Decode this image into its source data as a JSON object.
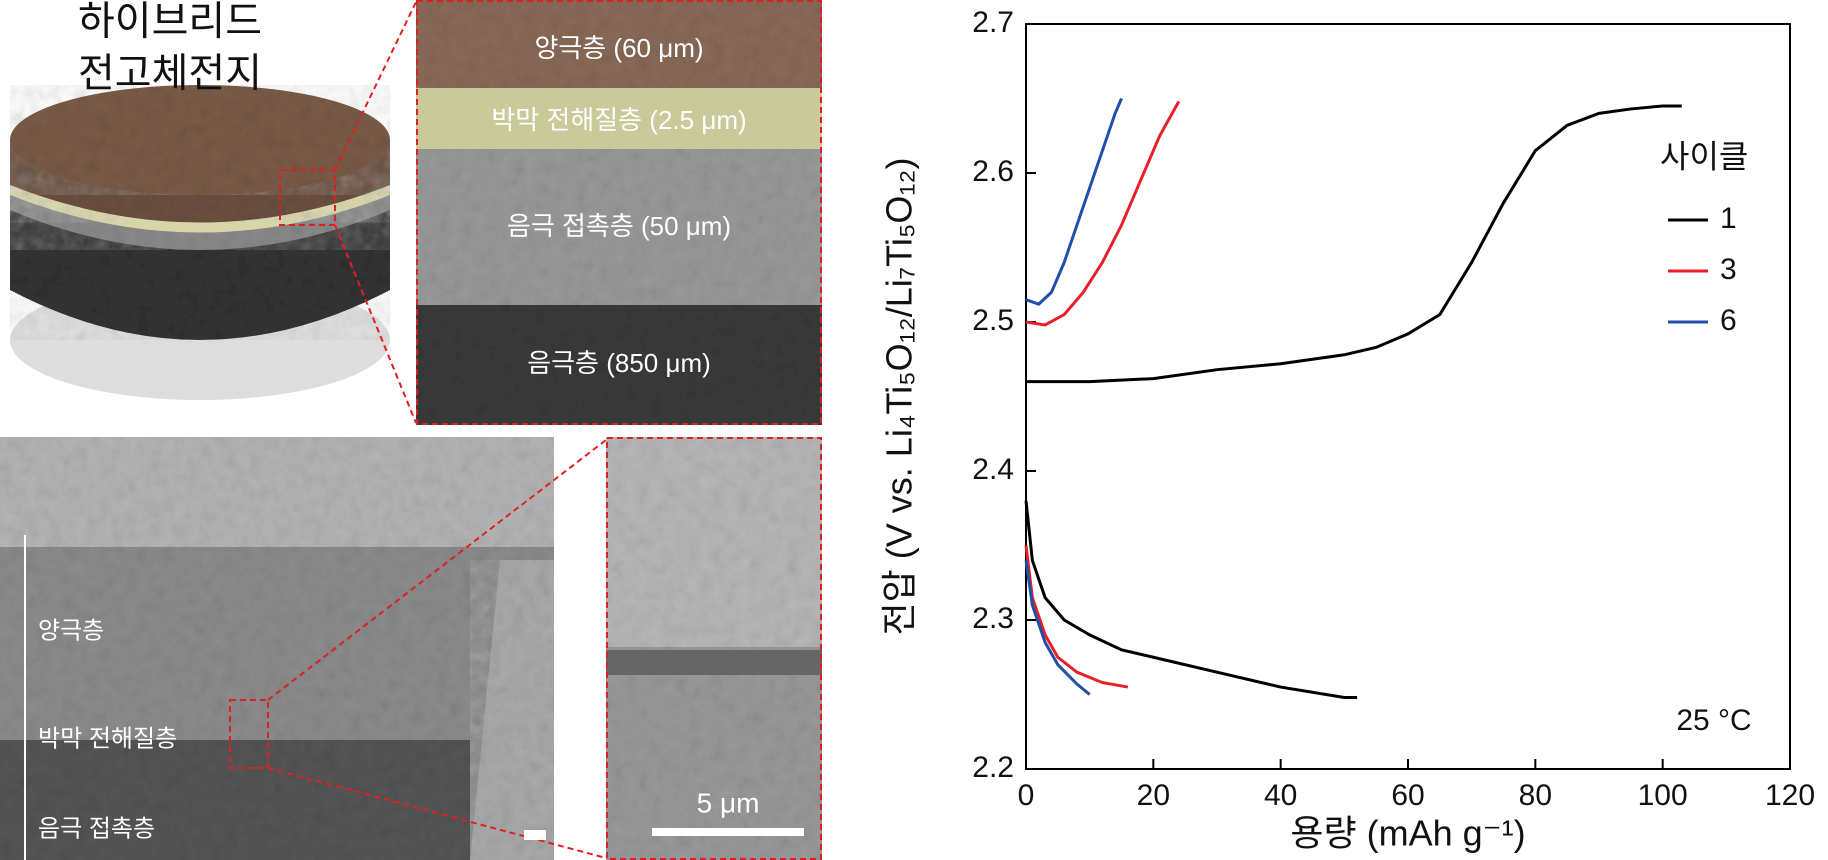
{
  "figure": {
    "title_lines": [
      "하이브리드",
      "전고체전지"
    ],
    "layers": [
      "양극층 (60 μm)",
      "박막 전해질층 (2.5 μm)",
      "음극 접촉층 (50 μm)",
      "음극층 (850 μm)"
    ],
    "sem_labels": [
      "양극층",
      "박막 전해질층",
      "음극 접촉층"
    ],
    "scale_bar": "5 μm"
  },
  "chart_data": {
    "type": "line",
    "xlabel": "용량 (mAh g⁻¹)",
    "ylabel": "전압 (V vs. Li₄Ti₅O₁₂/Li₇Ti₅O₁₂)",
    "legend_title": "사이클",
    "legend": "right",
    "annotation": "25 °C",
    "xlim": [
      0,
      120
    ],
    "xticks": [
      0,
      20,
      40,
      60,
      80,
      100,
      120
    ],
    "ylim": [
      2.2,
      2.7
    ],
    "yticks": [
      2.2,
      2.3,
      2.4,
      2.5,
      2.6,
      2.7
    ],
    "series": [
      {
        "name": "1",
        "color": "#000000",
        "x": [
          0,
          1,
          3,
          6,
          10,
          15,
          20,
          30,
          40,
          50,
          52,
          null,
          0,
          10,
          20,
          30,
          40,
          50,
          55,
          60,
          65,
          70,
          75,
          80,
          85,
          90,
          95,
          100,
          103
        ],
        "values": [
          2.38,
          2.34,
          2.315,
          2.3,
          2.29,
          2.28,
          2.275,
          2.265,
          2.255,
          2.248,
          2.248,
          null,
          2.46,
          2.46,
          2.462,
          2.468,
          2.472,
          2.478,
          2.483,
          2.492,
          2.505,
          2.54,
          2.58,
          2.615,
          2.632,
          2.64,
          2.643,
          2.645,
          2.645
        ]
      },
      {
        "name": "3",
        "color": "#e8202a",
        "x": [
          0,
          1,
          3,
          5,
          8,
          12,
          16,
          null,
          0,
          3,
          6,
          9,
          12,
          15,
          18,
          21,
          24
        ],
        "values": [
          2.35,
          2.315,
          2.29,
          2.275,
          2.265,
          2.258,
          2.255,
          null,
          2.5,
          2.498,
          2.505,
          2.52,
          2.54,
          2.565,
          2.595,
          2.625,
          2.648
        ]
      },
      {
        "name": "6",
        "color": "#1f4fa8",
        "x": [
          0,
          1,
          3,
          5,
          8,
          10,
          null,
          0,
          2,
          4,
          6,
          8,
          10,
          12,
          14,
          15
        ],
        "values": [
          2.34,
          2.31,
          2.285,
          2.27,
          2.257,
          2.25,
          null,
          2.515,
          2.512,
          2.52,
          2.54,
          2.565,
          2.59,
          2.615,
          2.64,
          2.65
        ]
      }
    ]
  }
}
